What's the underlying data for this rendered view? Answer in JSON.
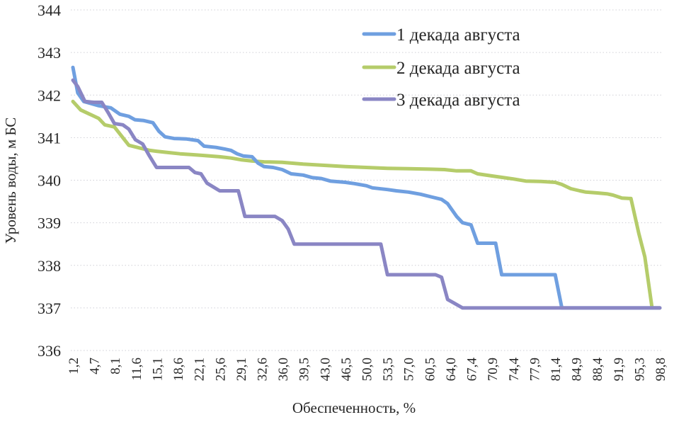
{
  "chart_data": {
    "type": "line",
    "title": "",
    "xlabel": "Обеспеченность, %",
    "ylabel": "Уровень воды, м БС",
    "ylim": [
      336,
      344
    ],
    "yticks": [
      344,
      343,
      342,
      341,
      340,
      339,
      338,
      337,
      336
    ],
    "xticks": [
      "1,2",
      "4,7",
      "8,1",
      "11,6",
      "15,1",
      "18,6",
      "22,1",
      "25,6",
      "29,1",
      "32,6",
      "36,0",
      "39,5",
      "43,0",
      "46,5",
      "50,0",
      "53,5",
      "57,0",
      "60,5",
      "64,0",
      "67,4",
      "70,9",
      "74,4",
      "77,9",
      "81,4",
      "84,9",
      "88,4",
      "91,9",
      "95,3",
      "98,8"
    ],
    "xlim": [
      1.2,
      98.8
    ],
    "grid": "horizontal dotted",
    "legend_position": "upper right",
    "series": [
      {
        "name": "1 декада августа",
        "color": "#6f9fe0",
        "points": [
          [
            1.2,
            342.65
          ],
          [
            2.0,
            342.05
          ],
          [
            3.0,
            341.85
          ],
          [
            5.5,
            341.75
          ],
          [
            7.5,
            341.7
          ],
          [
            9.0,
            341.55
          ],
          [
            10.5,
            341.5
          ],
          [
            11.5,
            341.42
          ],
          [
            13.0,
            341.4
          ],
          [
            14.5,
            341.35
          ],
          [
            15.5,
            341.15
          ],
          [
            16.5,
            341.02
          ],
          [
            18.0,
            340.98
          ],
          [
            20.0,
            340.97
          ],
          [
            21.0,
            340.95
          ],
          [
            22.0,
            340.93
          ],
          [
            23.0,
            340.8
          ],
          [
            25.0,
            340.77
          ],
          [
            26.5,
            340.73
          ],
          [
            27.5,
            340.7
          ],
          [
            28.5,
            340.62
          ],
          [
            29.5,
            340.57
          ],
          [
            31.0,
            340.55
          ],
          [
            32.0,
            340.4
          ],
          [
            33.0,
            340.32
          ],
          [
            34.5,
            340.3
          ],
          [
            36.0,
            340.25
          ],
          [
            37.5,
            340.15
          ],
          [
            39.5,
            340.12
          ],
          [
            41.0,
            340.06
          ],
          [
            42.5,
            340.04
          ],
          [
            44.0,
            339.98
          ],
          [
            46.5,
            339.95
          ],
          [
            48.0,
            339.92
          ],
          [
            50.0,
            339.87
          ],
          [
            51.0,
            339.82
          ],
          [
            53.5,
            339.78
          ],
          [
            55.0,
            339.75
          ],
          [
            57.0,
            339.72
          ],
          [
            59.0,
            339.67
          ],
          [
            61.0,
            339.6
          ],
          [
            62.5,
            339.55
          ],
          [
            63.5,
            339.45
          ],
          [
            65.0,
            339.15
          ],
          [
            66.0,
            339.0
          ],
          [
            67.4,
            338.95
          ],
          [
            68.5,
            338.52
          ],
          [
            70.5,
            338.52
          ],
          [
            71.5,
            338.52
          ],
          [
            72.5,
            337.78
          ],
          [
            75.0,
            337.78
          ],
          [
            80.0,
            337.78
          ],
          [
            81.4,
            337.78
          ],
          [
            82.5,
            337.0
          ],
          [
            98.8,
            337.0
          ]
        ]
      },
      {
        "name": "2 декада августа",
        "color": "#b5cc6a",
        "points": [
          [
            1.2,
            341.85
          ],
          [
            2.5,
            341.65
          ],
          [
            4.0,
            341.55
          ],
          [
            5.5,
            341.45
          ],
          [
            6.5,
            341.3
          ],
          [
            8.1,
            341.25
          ],
          [
            9.5,
            341.0
          ],
          [
            10.5,
            340.82
          ],
          [
            12.5,
            340.75
          ],
          [
            14.0,
            340.7
          ],
          [
            15.1,
            340.68
          ],
          [
            17.0,
            340.65
          ],
          [
            19.0,
            340.62
          ],
          [
            21.0,
            340.6
          ],
          [
            23.0,
            340.58
          ],
          [
            25.6,
            340.55
          ],
          [
            27.5,
            340.52
          ],
          [
            29.1,
            340.48
          ],
          [
            31.0,
            340.45
          ],
          [
            33.0,
            340.43
          ],
          [
            36.0,
            340.42
          ],
          [
            39.5,
            340.38
          ],
          [
            43.0,
            340.35
          ],
          [
            46.5,
            340.32
          ],
          [
            50.0,
            340.3
          ],
          [
            53.5,
            340.28
          ],
          [
            57.0,
            340.27
          ],
          [
            60.5,
            340.26
          ],
          [
            63.0,
            340.25
          ],
          [
            65.0,
            340.22
          ],
          [
            67.4,
            340.22
          ],
          [
            68.5,
            340.15
          ],
          [
            70.9,
            340.1
          ],
          [
            74.4,
            340.03
          ],
          [
            76.5,
            339.98
          ],
          [
            79.0,
            339.97
          ],
          [
            81.4,
            339.95
          ],
          [
            82.5,
            339.9
          ],
          [
            84.0,
            339.8
          ],
          [
            85.5,
            339.75
          ],
          [
            86.5,
            339.72
          ],
          [
            88.4,
            339.7
          ],
          [
            90.0,
            339.68
          ],
          [
            91.0,
            339.65
          ],
          [
            92.5,
            339.58
          ],
          [
            94.0,
            339.57
          ],
          [
            95.3,
            338.75
          ],
          [
            96.3,
            338.2
          ],
          [
            97.5,
            337.0
          ],
          [
            98.8,
            337.0
          ]
        ]
      },
      {
        "name": "3 декада августа",
        "color": "#8a86c4",
        "points": [
          [
            1.2,
            342.35
          ],
          [
            2.0,
            342.2
          ],
          [
            3.2,
            341.85
          ],
          [
            4.7,
            341.83
          ],
          [
            6.0,
            341.83
          ],
          [
            7.0,
            341.6
          ],
          [
            8.1,
            341.33
          ],
          [
            9.5,
            341.3
          ],
          [
            10.5,
            341.2
          ],
          [
            11.6,
            340.95
          ],
          [
            12.8,
            340.85
          ],
          [
            13.8,
            340.6
          ],
          [
            15.1,
            340.3
          ],
          [
            17.0,
            340.3
          ],
          [
            18.6,
            340.3
          ],
          [
            20.5,
            340.3
          ],
          [
            21.5,
            340.18
          ],
          [
            22.5,
            340.15
          ],
          [
            23.5,
            339.93
          ],
          [
            25.6,
            339.75
          ],
          [
            27.0,
            339.75
          ],
          [
            28.7,
            339.75
          ],
          [
            29.8,
            339.15
          ],
          [
            31.0,
            339.15
          ],
          [
            32.6,
            339.15
          ],
          [
            34.8,
            339.15
          ],
          [
            36.0,
            339.05
          ],
          [
            37.0,
            338.85
          ],
          [
            38.0,
            338.5
          ],
          [
            39.5,
            338.5
          ],
          [
            43.0,
            338.5
          ],
          [
            50.0,
            338.5
          ],
          [
            52.4,
            338.5
          ],
          [
            53.5,
            337.78
          ],
          [
            57.0,
            337.78
          ],
          [
            61.5,
            337.78
          ],
          [
            62.5,
            337.72
          ],
          [
            63.5,
            337.2
          ],
          [
            64.5,
            337.12
          ],
          [
            66.0,
            337.0
          ],
          [
            70.0,
            337.0
          ],
          [
            98.8,
            337.0
          ]
        ]
      }
    ]
  },
  "legend": {
    "items": [
      {
        "label": "1 декада августа",
        "color": "#6f9fe0"
      },
      {
        "label": "2 декада августа",
        "color": "#b5cc6a"
      },
      {
        "label": "3 декада августа",
        "color": "#8a86c4"
      }
    ]
  },
  "axes": {
    "xlabel": "Обеспеченность, %",
    "ylabel": "Уровень воды, м БС"
  }
}
